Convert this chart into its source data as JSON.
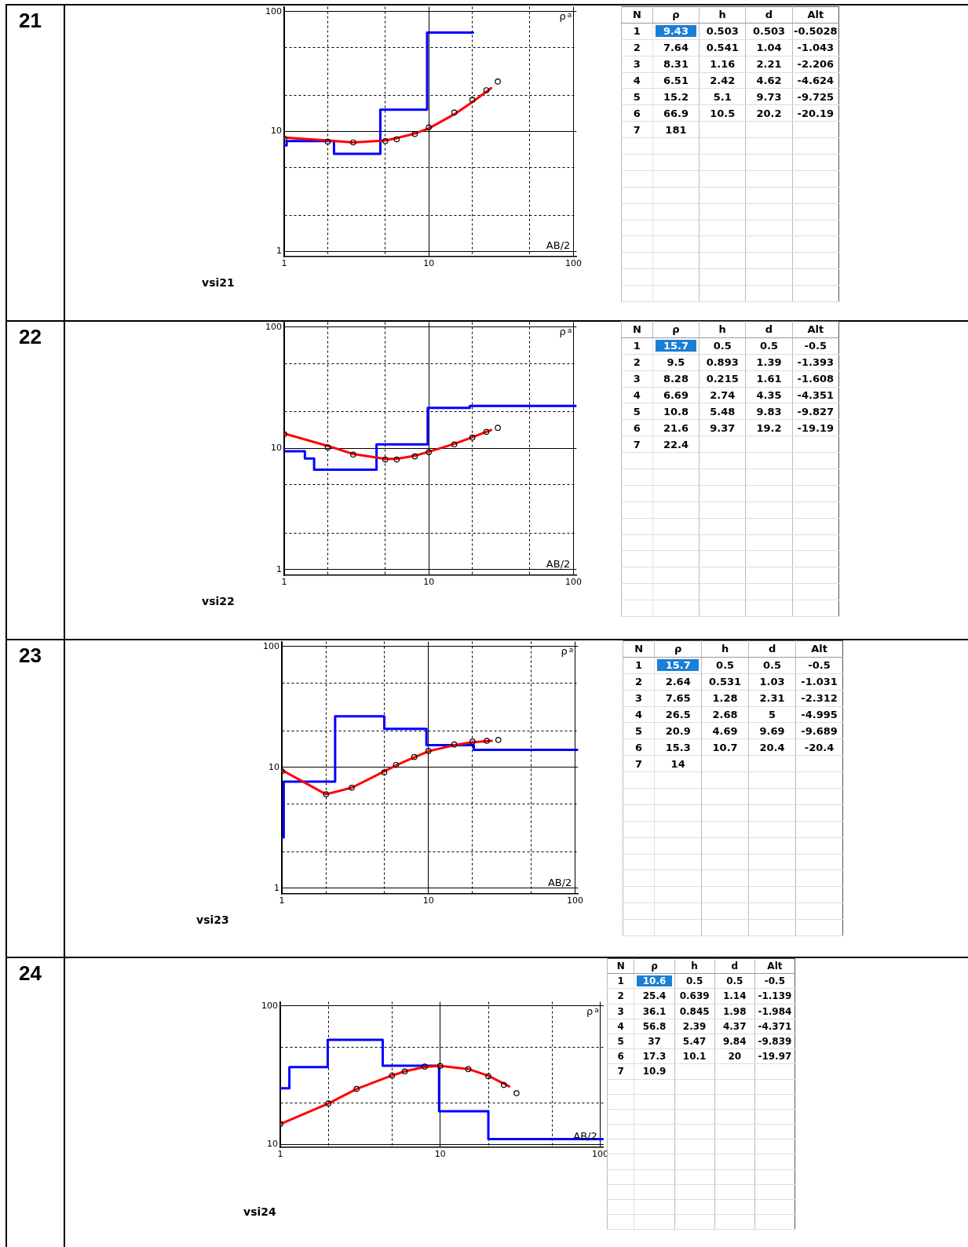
{
  "chart_data": [
    {
      "type": "line",
      "title": "vsi21",
      "xlabel": "AB/2",
      "ylabel": "ρ$_{a}$",
      "log": "xy",
      "grid": true,
      "xlim": [
        1,
        105
      ],
      "ylim": [
        0.9,
        110
      ],
      "annotations": [
        "21",
        "N",
        "ρ",
        "h",
        "d",
        "Alt",
        "1",
        "9.43",
        "0.503",
        "0.503",
        "-0.5028",
        "2",
        "7.64",
        "0.541",
        "1.04",
        "-1.043",
        "3",
        "8.31",
        "1.16",
        "2.21",
        "-2.206",
        "4",
        "6.51",
        "2.42",
        "4.62",
        "-4.624",
        "5",
        "15.2",
        "5.1",
        "9.73",
        "-9.725",
        "6",
        "66.9",
        "10.5",
        "20.2",
        "-20.19",
        "7",
        "181"
      ],
      "xticks": [
        1,
        {
          "value": 2,
          "label": null
        },
        {
          "value": 5,
          "label": null
        },
        10,
        {
          "value": 20,
          "label": null
        },
        {
          "value": 50,
          "label": null
        },
        100
      ],
      "yticks": [
        1,
        {
          "value": 2,
          "label": null
        },
        {
          "value": 5,
          "label": null
        },
        10,
        {
          "value": 20,
          "label": null
        },
        {
          "value": 50,
          "label": null
        },
        100
      ],
      "series": [
        {
          "type": "step",
          "color": "#0000ff",
          "marker": "none",
          "x": [
            1,
            1.04,
            2.21,
            4.62,
            9.73,
            20.2
          ],
          "values": [
            7.64,
            8.31,
            6.51,
            15.2,
            66.9,
            66.9
          ]
        },
        {
          "type": "line",
          "color": "#ff0000",
          "marker": "none",
          "x": [
            1,
            2,
            3,
            5,
            6,
            8,
            10,
            15,
            20,
            27
          ],
          "values": [
            8.9,
            8.4,
            8.1,
            8.4,
            8.8,
            9.6,
            10.6,
            13.9,
            17.6,
            23
          ]
        },
        {
          "type": "scatter",
          "color": "#000000",
          "marker": "circle",
          "x": [
            1,
            2,
            3,
            5,
            6,
            8,
            10,
            15,
            20,
            25,
            30
          ],
          "values": [
            8.7,
            8.2,
            8.1,
            8.3,
            8.6,
            9.5,
            10.8,
            14.4,
            18.4,
            22.1,
            26.1
          ]
        }
      ]
    },
    {
      "type": "line",
      "title": "vsi22",
      "xlabel": "AB/2",
      "ylabel": "ρ$_{a}$",
      "log": "xy",
      "grid": true,
      "xlim": [
        1,
        105
      ],
      "ylim": [
        0.9,
        110
      ],
      "annotations": [
        "22",
        "N",
        "ρ",
        "h",
        "d",
        "Alt",
        "1",
        "15.7",
        "0.5",
        "0.5",
        "-0.5",
        "2",
        "9.5",
        "0.893",
        "1.39",
        "-1.393",
        "3",
        "8.28",
        "0.215",
        "1.61",
        "-1.608",
        "4",
        "6.69",
        "2.74",
        "4.35",
        "-4.351",
        "5",
        "10.8",
        "5.48",
        "9.83",
        "-9.827",
        "6",
        "21.6",
        "9.37",
        "19.2",
        "-19.19",
        "7",
        "22.4"
      ],
      "xticks": [
        1,
        {
          "value": 2,
          "label": null
        },
        {
          "value": 5,
          "label": null
        },
        10,
        {
          "value": 20,
          "label": null
        },
        {
          "value": 50,
          "label": null
        },
        100
      ],
      "yticks": [
        1,
        {
          "value": 2,
          "label": null
        },
        {
          "value": 5,
          "label": null
        },
        10,
        {
          "value": 20,
          "label": null
        },
        {
          "value": 50,
          "label": null
        },
        100
      ],
      "series": [
        {
          "type": "step",
          "color": "#0000ff",
          "marker": "none",
          "x": [
            1,
            1.39,
            1.61,
            4.35,
            9.83,
            19.2,
            105
          ],
          "values": [
            9.5,
            8.28,
            6.69,
            10.8,
            21.6,
            22.4,
            22.4
          ]
        },
        {
          "type": "line",
          "color": "#ff0000",
          "marker": "none",
          "x": [
            1,
            2,
            3,
            5,
            6,
            8,
            10,
            15,
            20,
            27
          ],
          "values": [
            13.3,
            10.5,
            9.0,
            8.2,
            8.2,
            8.7,
            9.4,
            10.9,
            12.4,
            14.2
          ]
        },
        {
          "type": "scatter",
          "color": "#000000",
          "marker": "circle",
          "x": [
            1,
            2,
            3,
            5,
            6,
            8,
            10,
            15,
            20,
            25,
            30
          ],
          "values": [
            13.1,
            10.2,
            8.9,
            8.1,
            8.1,
            8.6,
            9.3,
            10.8,
            12.3,
            13.7,
            14.8
          ]
        }
      ]
    },
    {
      "type": "line",
      "title": "vsi23",
      "xlabel": "AB/2",
      "ylabel": "ρ$_{a}$",
      "log": "xy",
      "grid": true,
      "xlim": [
        1,
        105
      ],
      "ylim": [
        0.9,
        110
      ],
      "annotations": [
        "23",
        "N",
        "ρ",
        "h",
        "d",
        "Alt",
        "1",
        "15.7",
        "0.5",
        "0.5",
        "-0.5",
        "2",
        "2.64",
        "0.531",
        "1.03",
        "-1.031",
        "3",
        "7.65",
        "1.28",
        "2.31",
        "-2.312",
        "4",
        "26.5",
        "2.68",
        "5",
        "-4.995",
        "5",
        "20.9",
        "4.69",
        "9.69",
        "-9.689",
        "6",
        "15.3",
        "10.7",
        "20.4",
        "-20.4",
        "7",
        "14"
      ],
      "xticks": [
        1,
        {
          "value": 2,
          "label": null
        },
        {
          "value": 5,
          "label": null
        },
        10,
        {
          "value": 20,
          "label": null
        },
        {
          "value": 50,
          "label": null
        },
        100
      ],
      "yticks": [
        1,
        {
          "value": 2,
          "label": null
        },
        {
          "value": 5,
          "label": null
        },
        10,
        {
          "value": 20,
          "label": null
        },
        {
          "value": 50,
          "label": null
        },
        100
      ],
      "series": [
        {
          "type": "step",
          "color": "#0000ff",
          "marker": "none",
          "x": [
            1,
            1.03,
            2.31,
            5,
            9.69,
            20.4,
            105
          ],
          "values": [
            2.64,
            7.65,
            26.5,
            20.9,
            15.3,
            14,
            14
          ]
        },
        {
          "type": "line",
          "color": "#ff0000",
          "marker": "none",
          "x": [
            1,
            2,
            3,
            5,
            6,
            8,
            10,
            15,
            20,
            27
          ],
          "values": [
            9.5,
            6.0,
            6.8,
            9.3,
            10.4,
            12.1,
            13.6,
            15.3,
            16.2,
            16.6
          ]
        },
        {
          "type": "scatter",
          "color": "#000000",
          "marker": "circle",
          "x": [
            1,
            2,
            3,
            5,
            6,
            8,
            10,
            15,
            20,
            25,
            30
          ],
          "values": [
            9.3,
            6.0,
            6.8,
            9.1,
            10.5,
            12.2,
            13.7,
            15.5,
            16.4,
            16.6,
            16.9
          ]
        }
      ]
    },
    {
      "type": "line",
      "title": "vsi24",
      "xlabel": "AB/2",
      "ylabel": "ρ$_{a}$",
      "log": "xy",
      "grid": true,
      "xlim": [
        1,
        105
      ],
      "ylim": [
        9.5,
        107
      ],
      "annotations": [
        "24",
        "N",
        "ρ",
        "h",
        "d",
        "Alt",
        "1",
        "10.6",
        "0.5",
        "0.5",
        "-0.5",
        "2",
        "25.4",
        "0.639",
        "1.14",
        "-1.139",
        "3",
        "36.1",
        "0.845",
        "1.98",
        "-1.984",
        "4",
        "56.8",
        "2.39",
        "4.37",
        "-4.371",
        "5",
        "37",
        "5.47",
        "9.84",
        "-9.839",
        "6",
        "17.3",
        "10.1",
        "20",
        "-19.97",
        "7",
        "10.9"
      ],
      "xticks": [
        1,
        {
          "value": 2,
          "label": null
        },
        {
          "value": 5,
          "label": null
        },
        10,
        {
          "value": 20,
          "label": null
        },
        {
          "value": 50,
          "label": null
        },
        100
      ],
      "yticks": [
        10,
        {
          "value": 20,
          "label": null
        },
        {
          "value": 50,
          "label": null
        },
        100
      ],
      "series": [
        {
          "type": "step",
          "color": "#0000ff",
          "marker": "none",
          "x": [
            1,
            1.14,
            1.98,
            4.37,
            9.84,
            20,
            105
          ],
          "values": [
            25.4,
            36.1,
            56.8,
            37,
            17.3,
            10.9,
            10.9
          ]
        },
        {
          "type": "line",
          "color": "#ff0000",
          "marker": "none",
          "x": [
            1,
            2,
            3,
            5,
            6,
            8,
            10,
            15,
            20,
            27
          ],
          "values": [
            14.0,
            19.7,
            25.1,
            31.4,
            33.6,
            36.2,
            36.8,
            35.0,
            31.2,
            26.2
          ]
        },
        {
          "type": "scatter",
          "color": "#000000",
          "marker": "circle",
          "x": [
            1,
            2,
            3,
            5,
            6,
            8,
            10,
            15,
            20,
            25,
            30
          ],
          "values": [
            14.0,
            19.7,
            25.1,
            31.4,
            33.6,
            36.4,
            36.8,
            34.9,
            31.0,
            26.8,
            23.4
          ]
        }
      ]
    }
  ]
}
